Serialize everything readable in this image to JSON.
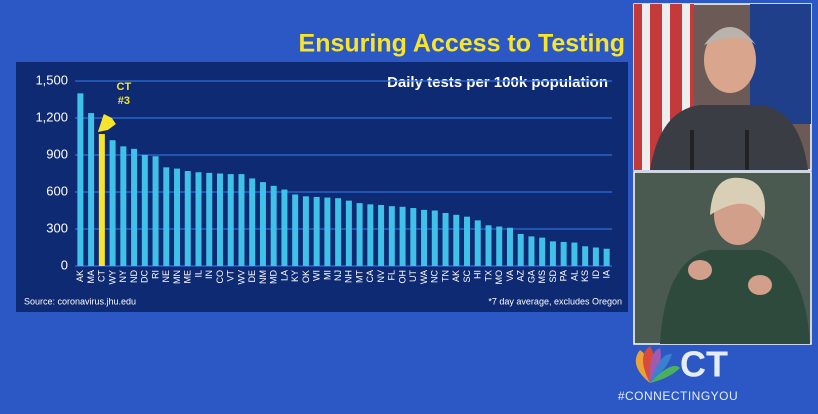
{
  "chart_data": {
    "type": "bar",
    "title": "Ensuring Access to Testing",
    "subtitle": "Daily tests per 100k population",
    "source": "Source: coronavirus.jhu.edu",
    "note": "*7 day average, excludes Oregon",
    "categories": [
      "AK",
      "MA",
      "CT",
      "WY",
      "NY",
      "ND",
      "DC",
      "RI",
      "NE",
      "MN",
      "ME",
      "IL",
      "IN",
      "CO",
      "VT",
      "WV",
      "DE",
      "NM",
      "MD",
      "LA",
      "KY",
      "OK",
      "WI",
      "MI",
      "NJ",
      "NH",
      "MT",
      "CA",
      "NV",
      "FL",
      "OH",
      "UT",
      "WA",
      "NC",
      "TN",
      "AK",
      "SC",
      "HI",
      "TX",
      "MO",
      "VA",
      "AZ",
      "GA",
      "MS",
      "SD",
      "PA",
      "AL",
      "KS",
      "ID",
      "IA"
    ],
    "values": [
      1400,
      1240,
      1070,
      1020,
      970,
      950,
      900,
      890,
      800,
      790,
      770,
      760,
      755,
      750,
      745,
      745,
      710,
      680,
      650,
      620,
      580,
      565,
      560,
      555,
      550,
      530,
      510,
      500,
      495,
      485,
      480,
      470,
      455,
      450,
      430,
      415,
      400,
      370,
      330,
      320,
      310,
      260,
      240,
      230,
      200,
      195,
      190,
      160,
      150,
      140
    ],
    "color": "#3fc1ea",
    "annotation": {
      "lines": [
        "CT",
        "#3"
      ],
      "category": "CT",
      "color": "#f7e52d"
    },
    "ylim": [
      0,
      1500
    ],
    "yticks": [
      0,
      300,
      600,
      900,
      {
        "value": 1200,
        "label": "1,200"
      },
      {
        "value": 1500,
        "label": "1,500"
      }
    ],
    "grid": true
  },
  "logo": {
    "text": "CT",
    "hashtag": "#CONNECTINGYOU"
  }
}
